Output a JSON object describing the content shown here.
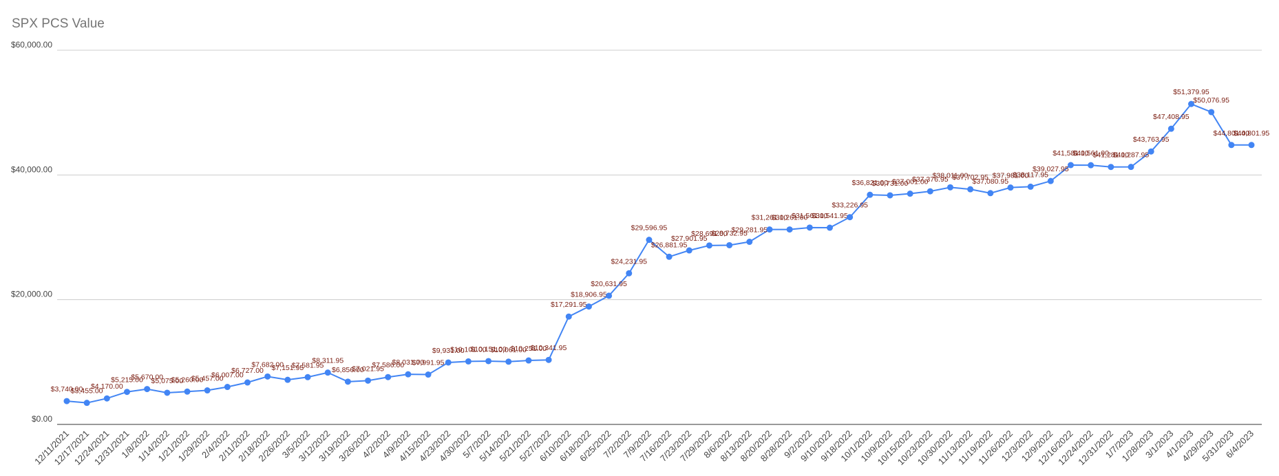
{
  "chart_data": {
    "type": "line",
    "title": "SPX PCS Value",
    "categories": [
      "12/11/2021",
      "12/17/2021",
      "12/24/2021",
      "12/31/2021",
      "1/8/2022",
      "1/14/2022",
      "1/21/2022",
      "1/29/2022",
      "2/4/2022",
      "2/11/2022",
      "2/18/2022",
      "2/26/2022",
      "3/5/2022",
      "3/12/2022",
      "3/19/2022",
      "3/26/2022",
      "4/2/2022",
      "4/9/2022",
      "4/15/2022",
      "4/23/2022",
      "4/30/2022",
      "5/7/2022",
      "5/14/2022",
      "5/21/2022",
      "5/27/2022",
      "6/10/2022",
      "6/18/2022",
      "6/25/2022",
      "7/2/2022",
      "7/9/2022",
      "7/16/2022",
      "7/23/2022",
      "7/29/2022",
      "8/6/2022",
      "8/13/2022",
      "8/20/2022",
      "8/28/2022",
      "9/2/2022",
      "9/10/2022",
      "9/18/2022",
      "10/1/2022",
      "10/9/2022",
      "10/15/2022",
      "10/23/2022",
      "10/30/2022",
      "11/13/2022",
      "11/19/2022",
      "11/26/2022",
      "12/3/2022",
      "12/9/2022",
      "12/16/2022",
      "12/24/2022",
      "12/31/2022",
      "1/7/2023",
      "1/28/2023",
      "3/1/2023",
      "4/1/2023",
      "4/29/2023",
      "5/31/2023",
      "6/4/2023"
    ],
    "values": [
      3740,
      3455,
      4170,
      5215,
      5670,
      5075,
      5260,
      5457,
      6007,
      6727,
      7682,
      7151.95,
      7581.95,
      8311.95,
      6856,
      7021.95,
      7586,
      8031,
      7991.95,
      9931,
      10101,
      10151,
      10061,
      10251,
      10341.95,
      17291.95,
      18906.95,
      20631.95,
      24231.95,
      29596.95,
      26881.95,
      27901.95,
      28691,
      28732.95,
      29281.95,
      31261,
      31261,
      31561,
      31541.95,
      33226.95,
      36821,
      36731,
      37001,
      37376.95,
      38011,
      37702.95,
      37080.95,
      37981,
      38117.95,
      39027.95,
      41581,
      41561,
      41281,
      41287.95,
      43763.95,
      47408.95,
      51379.95,
      50076.95,
      44801,
      44801.95
    ],
    "value_labels": [
      "$3,740.00",
      "$3,455.00",
      "$4,170.00",
      "$5,215.00",
      "$5,670.00",
      "$5,075.00",
      "$5,260.00",
      "$5,457.00",
      "$6,007.00",
      "$6,727.00",
      "$7,682.00",
      "$7,151.95",
      "$7,581.95",
      "$8,311.95",
      "$6,856.00",
      "$7,021.95",
      "$7,586.00",
      "$8,031.00",
      "$7,991.95",
      "$9,931.00",
      "$10,101.00",
      "$10,151.00",
      "$10,061.00",
      "$10,251.00",
      "$10,341.95",
      "$17,291.95",
      "$18,906.95",
      "$20,631.95",
      "$24,231.95",
      "$29,596.95",
      "$26,881.95",
      "$27,901.95",
      "$28,691.00",
      "$28,732.95",
      "$29,281.95",
      "$31,261.00",
      "$31,261.00",
      "$31,561.00",
      "$31,541.95",
      "$33,226.95",
      "$36,821.00",
      "$36,731.00",
      "$37,001.00",
      "$37,376.95",
      "$38,011.00",
      "$37,702.95",
      "$37,080.95",
      "$37,981.00",
      "$38,117.95",
      "$39,027.95",
      "$41,581.00",
      "$41,561.00",
      "$41,281.00",
      "$41,287.95",
      "$43,763.95",
      "$47,408.95",
      "$51,379.95",
      "$50,076.95",
      "$44,801.00",
      "$44,801.95"
    ],
    "color": "#4285f4",
    "ylim": [
      0,
      60000
    ],
    "yticks": [
      {
        "value": 0,
        "label": "$0.00"
      },
      {
        "value": 20000,
        "label": "$20,000.00"
      },
      {
        "value": 40000,
        "label": "$40,000.00"
      },
      {
        "value": 60000,
        "label": "$60,000.00"
      }
    ],
    "grid": true
  }
}
